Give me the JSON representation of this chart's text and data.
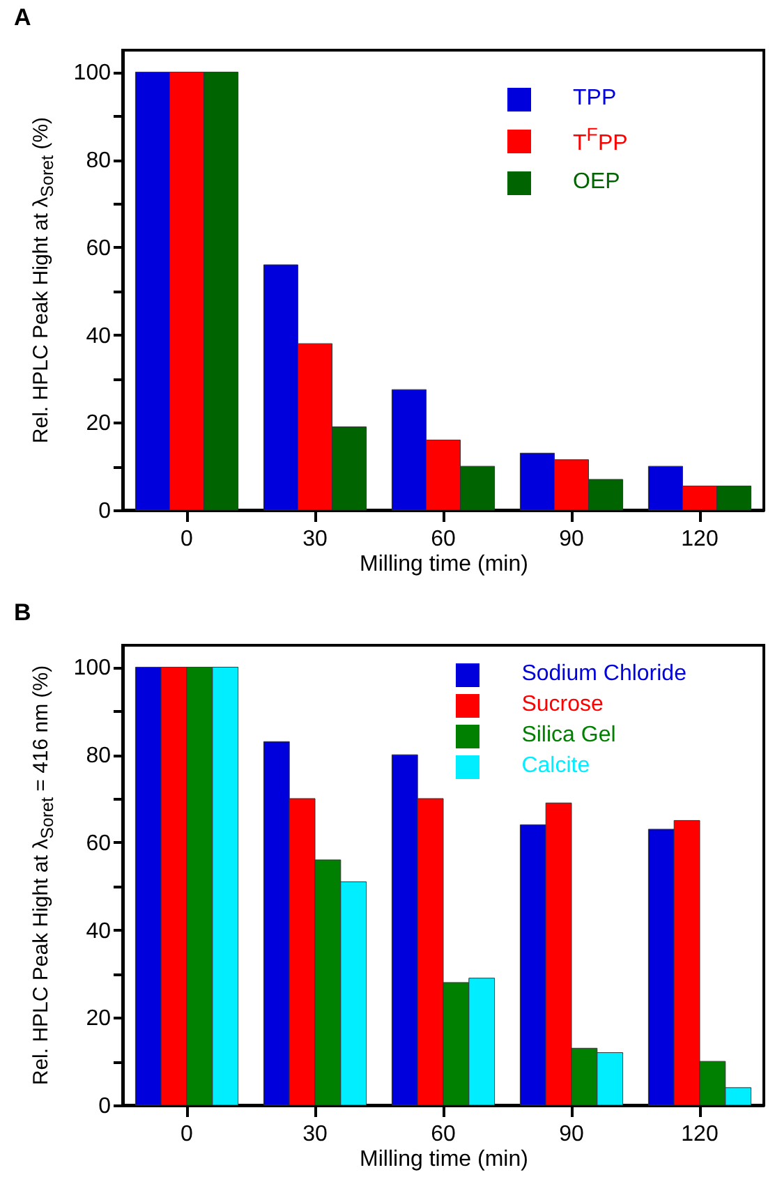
{
  "chart_data": [
    {
      "type": "bar",
      "title": "A",
      "xlabel": "Milling time (min)",
      "ylabel": "Rel. HPLC Peak Hight at λ$_{Soret}$ (%)",
      "categories": [
        "0",
        "30",
        "60",
        "90",
        "120"
      ],
      "series": [
        {
          "name": "TPP",
          "color": "#0000dd",
          "values": [
            100,
            56,
            27.5,
            13,
            10
          ]
        },
        {
          "name": "T$^{F}$PP",
          "color": "#ff0000",
          "values": [
            100,
            38,
            16,
            11.5,
            5.5
          ]
        },
        {
          "name": "OEP",
          "color": "#006400",
          "values": [
            100,
            19,
            10,
            7,
            5.5
          ]
        }
      ],
      "ylim": [
        0,
        105
      ],
      "yticks": [
        0,
        {
          "value": 10,
          "label": null
        },
        20,
        {
          "value": 30,
          "label": null
        },
        40,
        {
          "value": 50,
          "label": null
        },
        60,
        {
          "value": 70,
          "label": null
        },
        80,
        {
          "value": 90,
          "label": null
        },
        100
      ],
      "grid": false,
      "legend": "top right"
    },
    {
      "type": "bar",
      "title": "B",
      "xlabel": "Milling time (min)",
      "ylabel": "Rel. HPLC Peak Hight at λ$_{Soret}$ = 416 nm (%)",
      "categories": [
        "0",
        "30",
        "60",
        "90",
        "120"
      ],
      "series": [
        {
          "name": "Sodium Chloride",
          "color": "#0000dd",
          "values": [
            100,
            83,
            80,
            64,
            63
          ]
        },
        {
          "name": "Sucrose",
          "color": "#ff0000",
          "values": [
            100,
            70,
            70,
            69,
            65
          ]
        },
        {
          "name": "Silica Gel",
          "color": "#008000",
          "values": [
            100,
            56,
            28,
            13,
            10
          ]
        },
        {
          "name": "Calcite",
          "color": "#00eeff",
          "values": [
            100,
            51,
            29,
            12,
            4
          ]
        }
      ],
      "ylim": [
        0,
        105
      ],
      "yticks": [
        0,
        {
          "value": 10,
          "label": null
        },
        20,
        {
          "value": 30,
          "label": null
        },
        40,
        {
          "value": 50,
          "label": null
        },
        60,
        {
          "value": 70,
          "label": null
        },
        80,
        {
          "value": 90,
          "label": null
        },
        100
      ],
      "grid": false,
      "legend": "top right"
    }
  ]
}
